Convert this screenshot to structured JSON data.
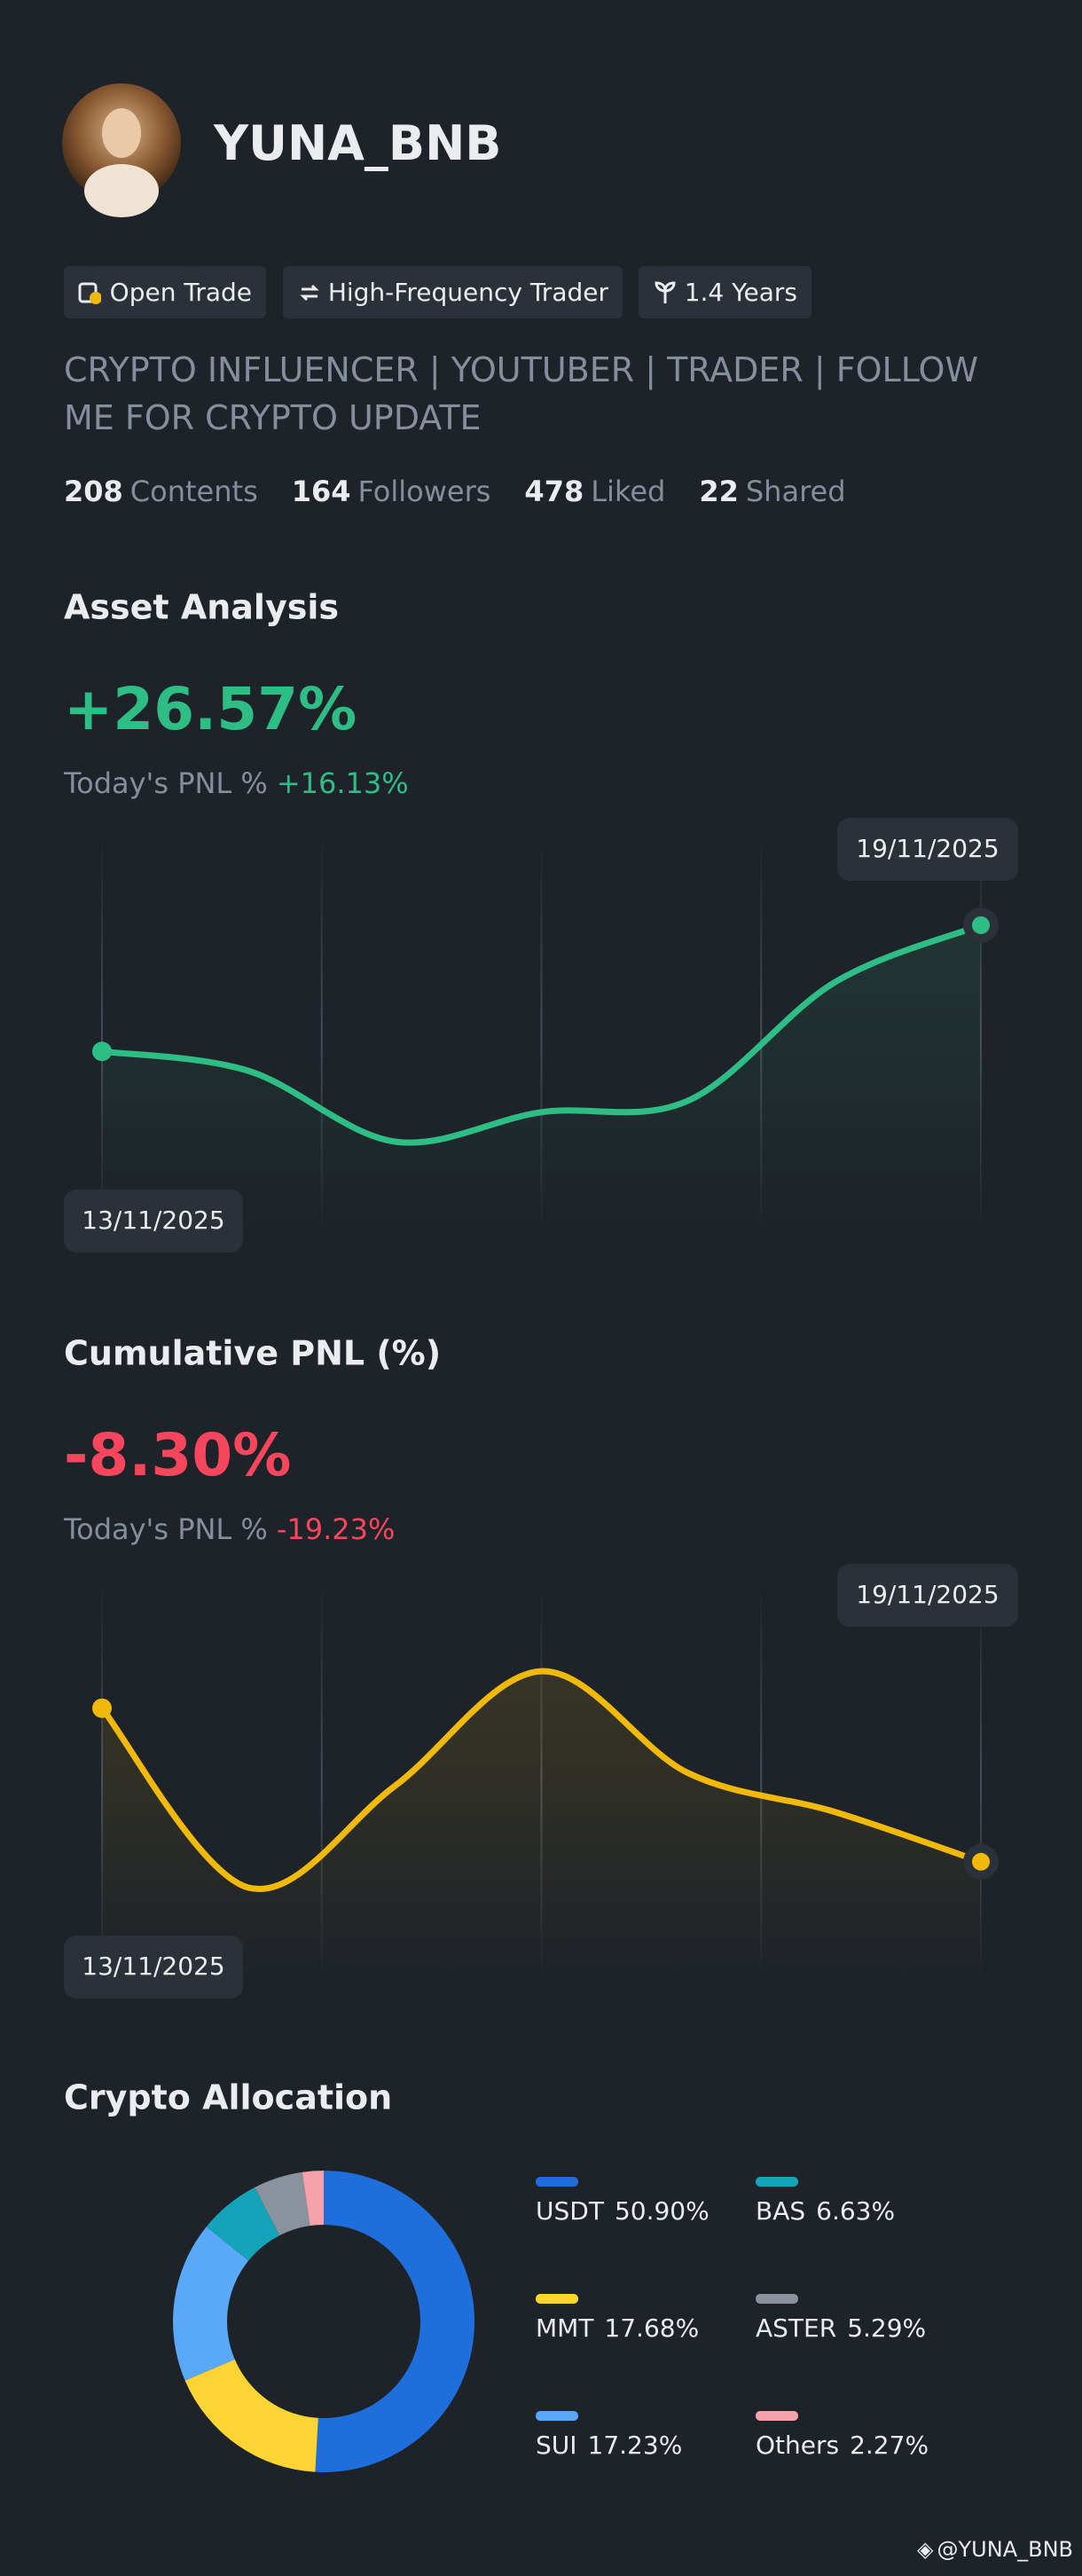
{
  "profile": {
    "name": "YUNA_BNB",
    "badges": [
      "Open Trade",
      "High-Frequency Trader",
      "1.4 Years"
    ],
    "bio": "CRYPTO INFLUENCER | YOUTUBER | TRADER | FOLLOW ME FOR CRYPTO UPDATE",
    "stats": [
      {
        "value": 208,
        "label": "Contents"
      },
      {
        "value": 164,
        "label": "Followers"
      },
      {
        "value": 478,
        "label": "Liked"
      },
      {
        "value": 22,
        "label": "Shared"
      }
    ],
    "watermark": "@YUNA_BNB"
  },
  "chart_data": [
    {
      "type": "line",
      "title": "Asset Analysis",
      "headline": "+26.57%",
      "today_label": "Today's PNL %",
      "today_value": "+16.13%",
      "color": "#2ebd85",
      "categories": [
        "13/11/2025",
        null,
        null,
        null,
        null,
        null,
        "19/11/2025"
      ],
      "values": [
        0,
        -4.1,
        -19,
        -12.8,
        -10.4,
        14.5,
        26.57
      ]
    },
    {
      "type": "line",
      "title": "Cumulative PNL (%)",
      "headline": "-8.30%",
      "today_label": "Today's PNL %",
      "today_value": "-19.23%",
      "color": "#f0b90b",
      "headline_color": "#f6465d",
      "categories": [
        "13/11/2025",
        null,
        null,
        null,
        null,
        null,
        "19/11/2025"
      ],
      "values": [
        0,
        -9.7,
        -4.2,
        2.0,
        -3.5,
        -5.6,
        -8.3
      ]
    },
    {
      "type": "pie",
      "title": "Crypto Allocation",
      "categories": [
        "USDT",
        "MMT",
        "SUI",
        "BAS",
        "ASTER",
        "Others"
      ],
      "values": [
        50.9,
        17.68,
        17.23,
        6.63,
        5.29,
        2.27
      ],
      "value_labels": [
        "50.90%",
        "17.68%",
        "17.23%",
        "6.63%",
        "5.29%",
        "2.27%"
      ],
      "colors": [
        "#1e6fdb",
        "#fcd535",
        "#5aa9f8",
        "#14a3b8",
        "#8a929e",
        "#f7a1ab"
      ]
    }
  ]
}
